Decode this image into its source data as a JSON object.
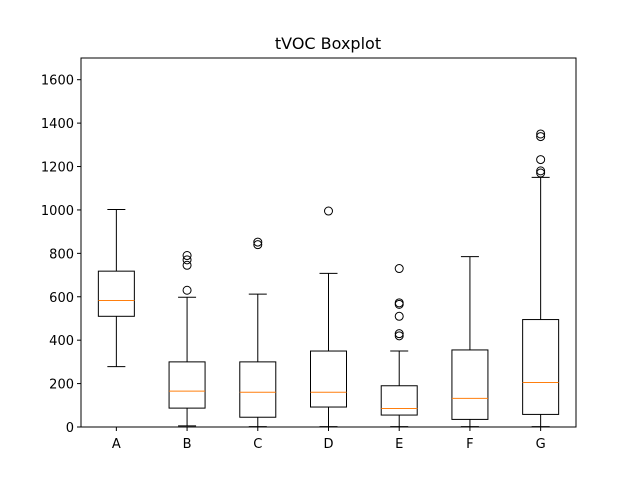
{
  "chart_data": {
    "type": "box",
    "title": "tVOC Boxplot",
    "xlabel": "",
    "ylabel": "",
    "ylim": [
      0,
      1700
    ],
    "yticks": [
      0,
      200,
      400,
      600,
      800,
      1000,
      1200,
      1400,
      1600
    ],
    "grid": false,
    "categories": [
      "A",
      "B",
      "C",
      "D",
      "E",
      "F",
      "G"
    ],
    "boxes": [
      {
        "label": "A",
        "whisker_low": 278,
        "q1": 510,
        "median": 583,
        "q3": 718,
        "whisker_high": 1002,
        "outliers": []
      },
      {
        "label": "B",
        "whisker_low": 5,
        "q1": 87,
        "median": 165,
        "q3": 300,
        "whisker_high": 598,
        "outliers": [
          630,
          745,
          770,
          790
        ]
      },
      {
        "label": "C",
        "whisker_low": 2,
        "q1": 45,
        "median": 160,
        "q3": 300,
        "whisker_high": 612,
        "outliers": [
          840,
          852
        ]
      },
      {
        "label": "D",
        "whisker_low": 2,
        "q1": 92,
        "median": 160,
        "q3": 350,
        "whisker_high": 708,
        "outliers": [
          995
        ]
      },
      {
        "label": "E",
        "whisker_low": 2,
        "q1": 55,
        "median": 85,
        "q3": 190,
        "whisker_high": 350,
        "outliers": [
          420,
          430,
          510,
          565,
          572,
          730
        ]
      },
      {
        "label": "F",
        "whisker_low": 2,
        "q1": 35,
        "median": 132,
        "q3": 355,
        "whisker_high": 785,
        "outliers": []
      },
      {
        "label": "G",
        "whisker_low": 2,
        "q1": 58,
        "median": 205,
        "q3": 495,
        "whisker_high": 1150,
        "outliers": [
          1170,
          1180,
          1232,
          1338,
          1350
        ]
      }
    ],
    "colors": {
      "box": "#000000",
      "median": "#ff7f0e",
      "outlier": "#000000"
    }
  }
}
